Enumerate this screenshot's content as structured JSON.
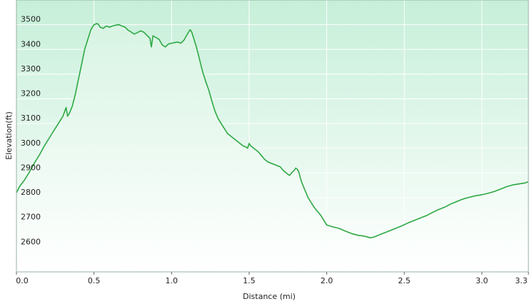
{
  "chart_data": {
    "type": "area",
    "title": "",
    "xlabel": "Distance  (mi)",
    "ylabel": "Elevation(ft)",
    "xlim": [
      0,
      3.3
    ],
    "ylim": [
      2500,
      3600
    ],
    "x_ticks": [
      {
        "value": 0.0,
        "label": "0.0"
      },
      {
        "value": 0.5,
        "label": "0.5"
      },
      {
        "value": 1.0,
        "label": "1.0"
      },
      {
        "value": 1.5,
        "label": "1.5"
      },
      {
        "value": 2.0,
        "label": "2.0"
      },
      {
        "value": 2.5,
        "label": "2.5"
      },
      {
        "value": 3.0,
        "label": "3.0"
      },
      {
        "value": 3.3,
        "label": "3.3"
      }
    ],
    "y_ticks": [
      {
        "value": 2600,
        "label": "2600"
      },
      {
        "value": 2700,
        "label": "2700"
      },
      {
        "value": 2800,
        "label": "2800"
      },
      {
        "value": 2900,
        "label": "2900"
      },
      {
        "value": 3000,
        "label": "3000"
      },
      {
        "value": 3100,
        "label": "3100"
      },
      {
        "value": 3200,
        "label": "3200"
      },
      {
        "value": 3300,
        "label": "3300"
      },
      {
        "value": 3400,
        "label": "3400"
      },
      {
        "value": 3500,
        "label": "3500"
      }
    ],
    "grid": true,
    "legend": "none",
    "series": [
      {
        "color": "#2ea843",
        "fill_top": "#c6efd9",
        "fill_bottom": "#ffffff",
        "x": [
          0.0,
          0.02,
          0.05,
          0.08,
          0.12,
          0.15,
          0.18,
          0.22,
          0.26,
          0.3,
          0.32,
          0.33,
          0.34,
          0.36,
          0.38,
          0.4,
          0.42,
          0.44,
          0.46,
          0.48,
          0.5,
          0.52,
          0.53,
          0.54,
          0.56,
          0.58,
          0.6,
          0.62,
          0.64,
          0.66,
          0.68,
          0.7,
          0.72,
          0.74,
          0.76,
          0.78,
          0.8,
          0.82,
          0.84,
          0.86,
          0.87,
          0.88,
          0.9,
          0.92,
          0.94,
          0.96,
          0.98,
          1.0,
          1.02,
          1.04,
          1.06,
          1.08,
          1.1,
          1.12,
          1.13,
          1.14,
          1.16,
          1.18,
          1.2,
          1.22,
          1.24,
          1.26,
          1.28,
          1.3,
          1.32,
          1.34,
          1.36,
          1.38,
          1.4,
          1.42,
          1.44,
          1.46,
          1.48,
          1.49,
          1.5,
          1.51,
          1.52,
          1.54,
          1.56,
          1.58,
          1.6,
          1.62,
          1.64,
          1.66,
          1.68,
          1.7,
          1.72,
          1.74,
          1.76,
          1.78,
          1.79,
          1.8,
          1.81,
          1.82,
          1.83,
          1.84,
          1.86,
          1.88,
          1.9,
          1.92,
          1.94,
          1.96,
          1.98,
          2.0,
          2.04,
          2.08,
          2.12,
          2.16,
          2.2,
          2.24,
          2.28,
          2.3,
          2.32,
          2.36,
          2.4,
          2.44,
          2.48,
          2.52,
          2.56,
          2.6,
          2.64,
          2.68,
          2.72,
          2.76,
          2.8,
          2.84,
          2.88,
          2.92,
          2.96,
          3.0,
          3.04,
          3.08,
          3.12,
          3.16,
          3.2,
          3.24,
          3.28,
          3.3
        ],
        "y": [
          2820,
          2845,
          2870,
          2900,
          2945,
          2975,
          3010,
          3050,
          3090,
          3130,
          3165,
          3130,
          3140,
          3170,
          3220,
          3280,
          3340,
          3400,
          3440,
          3480,
          3500,
          3505,
          3500,
          3490,
          3485,
          3495,
          3490,
          3495,
          3498,
          3500,
          3495,
          3490,
          3478,
          3470,
          3462,
          3468,
          3475,
          3470,
          3458,
          3445,
          3410,
          3455,
          3448,
          3440,
          3418,
          3410,
          3422,
          3425,
          3428,
          3430,
          3425,
          3438,
          3460,
          3480,
          3470,
          3450,
          3410,
          3360,
          3310,
          3270,
          3235,
          3190,
          3150,
          3120,
          3100,
          3080,
          3060,
          3050,
          3040,
          3030,
          3020,
          3010,
          3005,
          3000,
          3020,
          3010,
          3005,
          2995,
          2985,
          2970,
          2955,
          2945,
          2940,
          2935,
          2930,
          2925,
          2910,
          2900,
          2890,
          2905,
          2910,
          2920,
          2915,
          2905,
          2880,
          2860,
          2830,
          2800,
          2780,
          2760,
          2745,
          2730,
          2710,
          2690,
          2682,
          2676,
          2665,
          2655,
          2648,
          2645,
          2638,
          2640,
          2645,
          2655,
          2665,
          2675,
          2685,
          2697,
          2707,
          2717,
          2727,
          2740,
          2752,
          2762,
          2775,
          2785,
          2795,
          2802,
          2808,
          2812,
          2818,
          2825,
          2835,
          2845,
          2852,
          2856,
          2860,
          2865
        ]
      }
    ]
  }
}
